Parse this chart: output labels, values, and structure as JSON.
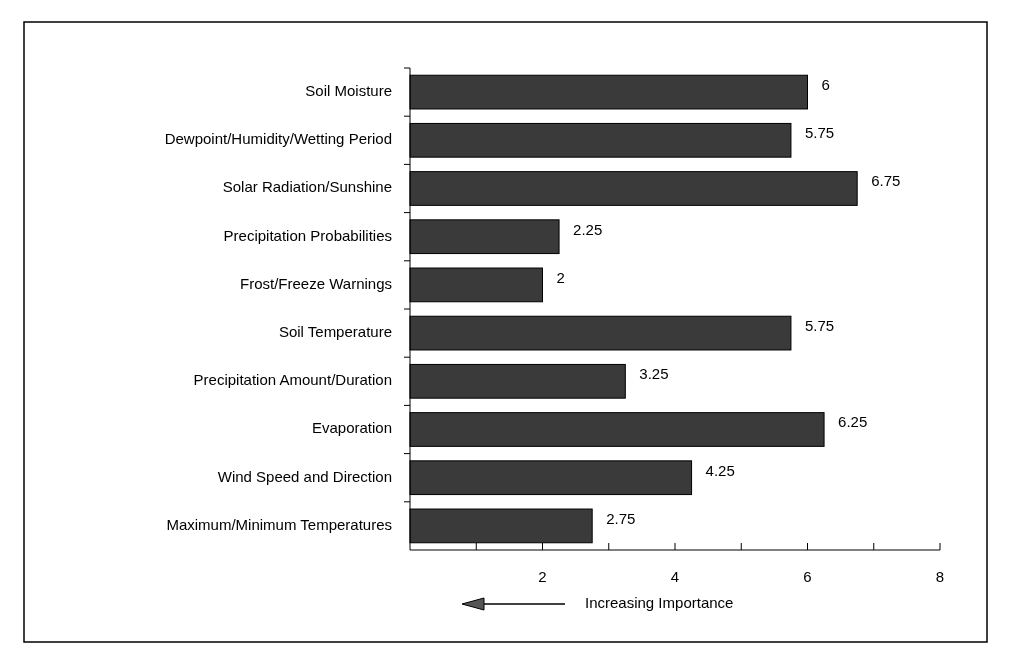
{
  "chart_data": {
    "type": "bar",
    "orientation": "horizontal",
    "categories": [
      "Soil Moisture",
      "Dewpoint/Humidity/Wetting Period",
      "Solar Radiation/Sunshine",
      "Precipitation Probabilities",
      "Frost/Freeze Warnings",
      "Soil Temperature",
      "Precipitation Amount/Duration",
      "Evaporation",
      "Wind Speed and Direction",
      "Maximum/Minimum Temperatures"
    ],
    "values": [
      6,
      5.75,
      6.75,
      2.25,
      2,
      5.75,
      3.25,
      6.25,
      4.25,
      2.75
    ],
    "color": "#3a3a3a",
    "data_labels": true,
    "xlim": [
      0,
      8
    ],
    "xticks": [
      {
        "value": 1,
        "label": null
      },
      2,
      {
        "value": 3,
        "label": null
      },
      4,
      {
        "value": 5,
        "label": null
      },
      6,
      {
        "value": 7,
        "label": null
      },
      8
    ],
    "annotations": [
      "Increasing Importance"
    ]
  }
}
